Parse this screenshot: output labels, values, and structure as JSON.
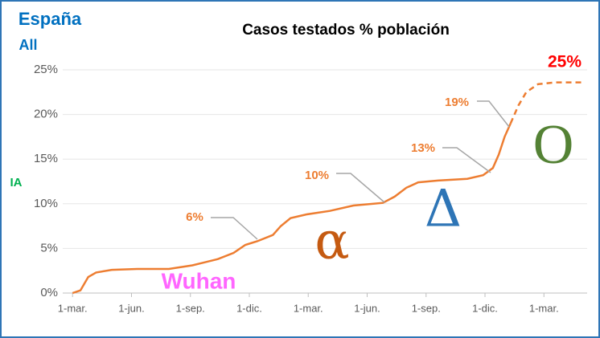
{
  "chart_data": {
    "type": "line",
    "title": "Casos testados % población",
    "region": "España",
    "subregion": "All",
    "ylabel": "IA",
    "xlim": [
      -0.5,
      26.2
    ],
    "ylim": [
      0,
      25
    ],
    "xticks": [
      {
        "value": 0,
        "label": "1-mar."
      },
      {
        "value": 3,
        "label": "1-jun."
      },
      {
        "value": 6,
        "label": "1-sep."
      },
      {
        "value": 9,
        "label": "1-dic."
      },
      {
        "value": 12,
        "label": "1-mar."
      },
      {
        "value": 15,
        "label": "1-jun."
      },
      {
        "value": 18,
        "label": "1-sep."
      },
      {
        "value": 21,
        "label": "1-dic."
      },
      {
        "value": 24,
        "label": "1-mar."
      }
    ],
    "yticks": [
      {
        "value": 0,
        "label": "0%"
      },
      {
        "value": 5,
        "label": "5%"
      },
      {
        "value": 10,
        "label": "10%"
      },
      {
        "value": 15,
        "label": "15%"
      },
      {
        "value": 20,
        "label": "20%"
      },
      {
        "value": 25,
        "label": "25%"
      }
    ],
    "series": [
      {
        "color": "#ed7d31",
        "style": "solid",
        "x": [
          0,
          0.4,
          0.8,
          1.2,
          2.0,
          3.3,
          4.9,
          6.1,
          7.4,
          8.2,
          8.8,
          9.4,
          10.2,
          10.6,
          11.1,
          11.9,
          13.1,
          14.3,
          15.8,
          16.4,
          17.0,
          17.6,
          18.6,
          20.1,
          20.9,
          21.4,
          21.7,
          22.0,
          22.3
        ],
        "values": [
          0,
          0.3,
          1.8,
          2.3,
          2.6,
          2.7,
          2.7,
          3.1,
          3.8,
          4.5,
          5.4,
          5.8,
          6.5,
          7.5,
          8.4,
          8.8,
          9.2,
          9.8,
          10.1,
          10.8,
          11.8,
          12.4,
          12.6,
          12.8,
          13.2,
          14,
          15.5,
          17.5,
          19
        ]
      },
      {
        "color": "#ed7d31",
        "style": "dashed",
        "x": [
          22.3,
          22.7,
          23.1,
          23.7,
          24.6,
          26.0
        ],
        "values": [
          19,
          21,
          22.5,
          23.4,
          23.6,
          23.6
        ]
      }
    ],
    "annotations": [
      "6%",
      "10%",
      "13%",
      "19%",
      "25%",
      "Wuhan",
      "α",
      "Δ",
      "O"
    ]
  }
}
